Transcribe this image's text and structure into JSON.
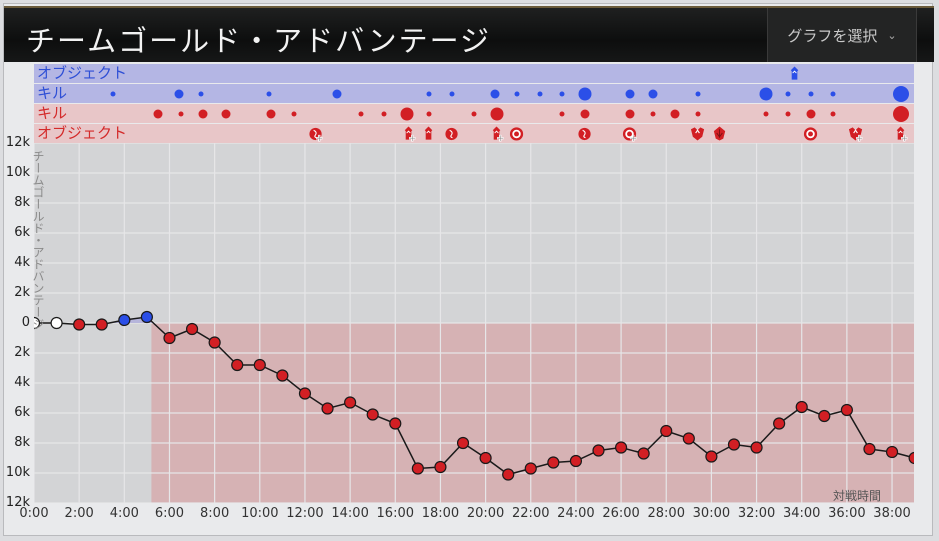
{
  "header": {
    "title": "チームゴールド・アドバンテージ",
    "selector_label": "グラフを選択",
    "selector_icon": "chevron-down-icon"
  },
  "event_rows": {
    "blue_objective_label": "オブジェクト",
    "blue_kill_label": "キル",
    "red_kill_label": "キル",
    "red_objective_label": "オブジェクト",
    "blue_objectives": [
      {
        "minute": 33.7,
        "icon": "tower-icon"
      }
    ],
    "blue_kills": [
      {
        "minute": 3.5,
        "size": "s"
      },
      {
        "minute": 6.4,
        "size": "m"
      },
      {
        "minute": 7.4,
        "size": "s"
      },
      {
        "minute": 10.4,
        "size": "s"
      },
      {
        "minute": 13.4,
        "size": "m"
      },
      {
        "minute": 17.5,
        "size": "s"
      },
      {
        "minute": 18.5,
        "size": "s"
      },
      {
        "minute": 20.4,
        "size": "m"
      },
      {
        "minute": 21.4,
        "size": "s"
      },
      {
        "minute": 22.4,
        "size": "s"
      },
      {
        "minute": 23.4,
        "size": "s"
      },
      {
        "minute": 24.4,
        "size": "l"
      },
      {
        "minute": 26.4,
        "size": "m"
      },
      {
        "minute": 27.4,
        "size": "m"
      },
      {
        "minute": 29.4,
        "size": "s"
      },
      {
        "minute": 32.4,
        "size": "l"
      },
      {
        "minute": 33.4,
        "size": "s"
      },
      {
        "minute": 34.4,
        "size": "s"
      },
      {
        "minute": 35.4,
        "size": "s"
      },
      {
        "minute": 38.4,
        "size": "xl"
      }
    ],
    "red_kills": [
      {
        "minute": 5.5,
        "size": "m"
      },
      {
        "minute": 6.5,
        "size": "s"
      },
      {
        "minute": 7.5,
        "size": "m"
      },
      {
        "minute": 8.5,
        "size": "m"
      },
      {
        "minute": 10.5,
        "size": "m"
      },
      {
        "minute": 11.5,
        "size": "s"
      },
      {
        "minute": 14.5,
        "size": "s"
      },
      {
        "minute": 15.5,
        "size": "s"
      },
      {
        "minute": 16.5,
        "size": "l"
      },
      {
        "minute": 17.5,
        "size": "s"
      },
      {
        "minute": 19.5,
        "size": "s"
      },
      {
        "minute": 20.5,
        "size": "l"
      },
      {
        "minute": 23.4,
        "size": "s"
      },
      {
        "minute": 24.4,
        "size": "m"
      },
      {
        "minute": 26.4,
        "size": "m"
      },
      {
        "minute": 27.4,
        "size": "s"
      },
      {
        "minute": 28.4,
        "size": "m"
      },
      {
        "minute": 29.4,
        "size": "s"
      },
      {
        "minute": 32.4,
        "size": "s"
      },
      {
        "minute": 33.4,
        "size": "s"
      },
      {
        "minute": 34.4,
        "size": "m"
      },
      {
        "minute": 35.4,
        "size": "s"
      },
      {
        "minute": 38.4,
        "size": "xl"
      }
    ],
    "red_objectives": [
      {
        "minute": 12.5,
        "icon": "dragon-icon",
        "plus": true
      },
      {
        "minute": 16.6,
        "icon": "tower-icon",
        "plus": true
      },
      {
        "minute": 17.5,
        "icon": "tower-icon",
        "plus": false
      },
      {
        "minute": 18.5,
        "icon": "dragon-icon",
        "plus": false
      },
      {
        "minute": 20.5,
        "icon": "tower-icon",
        "plus": true
      },
      {
        "minute": 21.4,
        "icon": "inhibitor-icon",
        "plus": false
      },
      {
        "minute": 24.4,
        "icon": "dragon-icon",
        "plus": false
      },
      {
        "minute": 26.4,
        "icon": "inhibitor-icon",
        "plus": true
      },
      {
        "minute": 29.4,
        "icon": "baron-icon",
        "plus": false
      },
      {
        "minute": 30.4,
        "icon": "herald-icon",
        "plus": false
      },
      {
        "minute": 34.4,
        "icon": "inhibitor-icon",
        "plus": false
      },
      {
        "minute": 36.4,
        "icon": "baron-icon",
        "plus": true
      },
      {
        "minute": 38.4,
        "icon": "tower-icon",
        "plus": true
      }
    ]
  },
  "colors": {
    "blue_team": "#2b4fe8",
    "red_team": "#d21f24",
    "blue_band": "#b4b6e4",
    "red_band": "#e8c6c8",
    "red_area": "#d6b2b4",
    "blue_area": "#b6b5db",
    "plot_bg": "#d3d4d6"
  },
  "chart_data": {
    "type": "line",
    "title": "チームゴールド・アドバンテージ",
    "xlabel": "対戦時間",
    "ylabel": "チームゴールド・アドバンテージ",
    "x": [
      0,
      1,
      2,
      3,
      4,
      5,
      6,
      7,
      8,
      9,
      10,
      11,
      12,
      13,
      14,
      15,
      16,
      17,
      18,
      19,
      20,
      21,
      22,
      23,
      24,
      25,
      26,
      27,
      28,
      29,
      30,
      31,
      32,
      33,
      34,
      35,
      36,
      37,
      38,
      39
    ],
    "values": [
      0,
      0,
      -100,
      -100,
      200,
      400,
      -1000,
      -400,
      -1300,
      -2800,
      -2800,
      -3500,
      -4700,
      -5700,
      -5300,
      -6100,
      -6700,
      -9700,
      -9600,
      -8000,
      -9000,
      -10100,
      -9700,
      -9300,
      -9200,
      -8500,
      -8300,
      -8700,
      -7200,
      -7700,
      -8900,
      -8100,
      -8300,
      -6700,
      -5600,
      -6200,
      -5800,
      -8400,
      -8600,
      -9000
    ],
    "point_team": [
      "neutral",
      "neutral",
      "red",
      "red",
      "blue",
      "blue",
      "red",
      "red",
      "red",
      "red",
      "red",
      "red",
      "red",
      "red",
      "red",
      "red",
      "red",
      "red",
      "red",
      "red",
      "red",
      "red",
      "red",
      "red",
      "red",
      "red",
      "red",
      "red",
      "red",
      "red",
      "red",
      "red",
      "red",
      "red",
      "red",
      "red",
      "red",
      "red",
      "red",
      "red"
    ],
    "ylim": [
      -12000,
      12000
    ],
    "yticks": [
      "12k",
      "10k",
      "8k",
      "6k",
      "4k",
      "2k",
      "0",
      "2k",
      "4k",
      "6k",
      "8k",
      "10k",
      "12k"
    ],
    "xticks": [
      "0:00",
      "2:00",
      "4:00",
      "6:00",
      "8:00",
      "10:00",
      "12:00",
      "14:00",
      "16:00",
      "18:00",
      "20:00",
      "22:00",
      "24:00",
      "26:00",
      "28:00",
      "30:00",
      "32:00",
      "34:00",
      "36:00",
      "38:00"
    ],
    "grid": true,
    "legend": "none"
  }
}
